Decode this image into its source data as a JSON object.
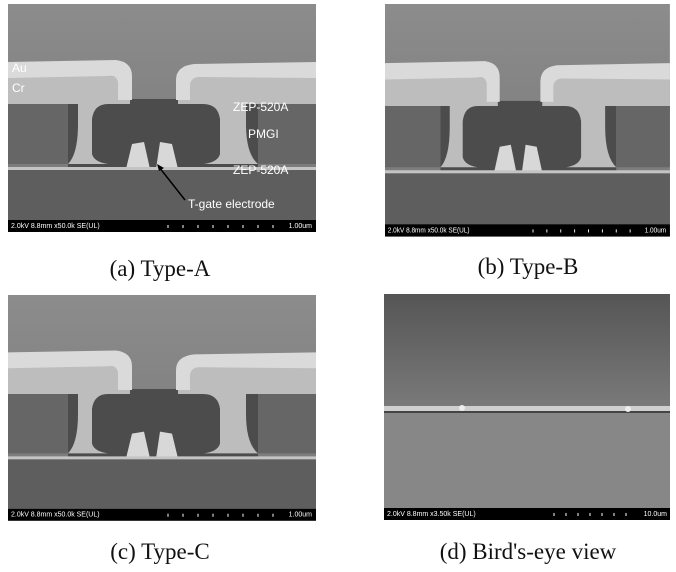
{
  "panels": [
    {
      "label": "(a) Type-A",
      "info_bar": {
        "settings": "2.0kV 8.8mm x50.0k SE(UL)",
        "scale": "1.00um"
      },
      "annotations": [
        "Au",
        "Cr",
        "ZEP-520A",
        "PMGI",
        "ZEP-520A",
        "T-gate electrode"
      ]
    },
    {
      "label": "(b) Type-B",
      "info_bar": {
        "settings": "2.0kV 8.8mm x50.0k SE(UL)",
        "scale": "1.00um"
      }
    },
    {
      "label": "(c) Type-C",
      "info_bar": {
        "settings": "2.0kV 8.8mm x50.0k SE(UL)",
        "scale": "1.00um"
      }
    },
    {
      "label": "(d) Bird's-eye view",
      "info_bar": {
        "settings": "2.0kV 8.8mm x3.50k SE(UL)",
        "scale": "10.0um"
      }
    }
  ]
}
